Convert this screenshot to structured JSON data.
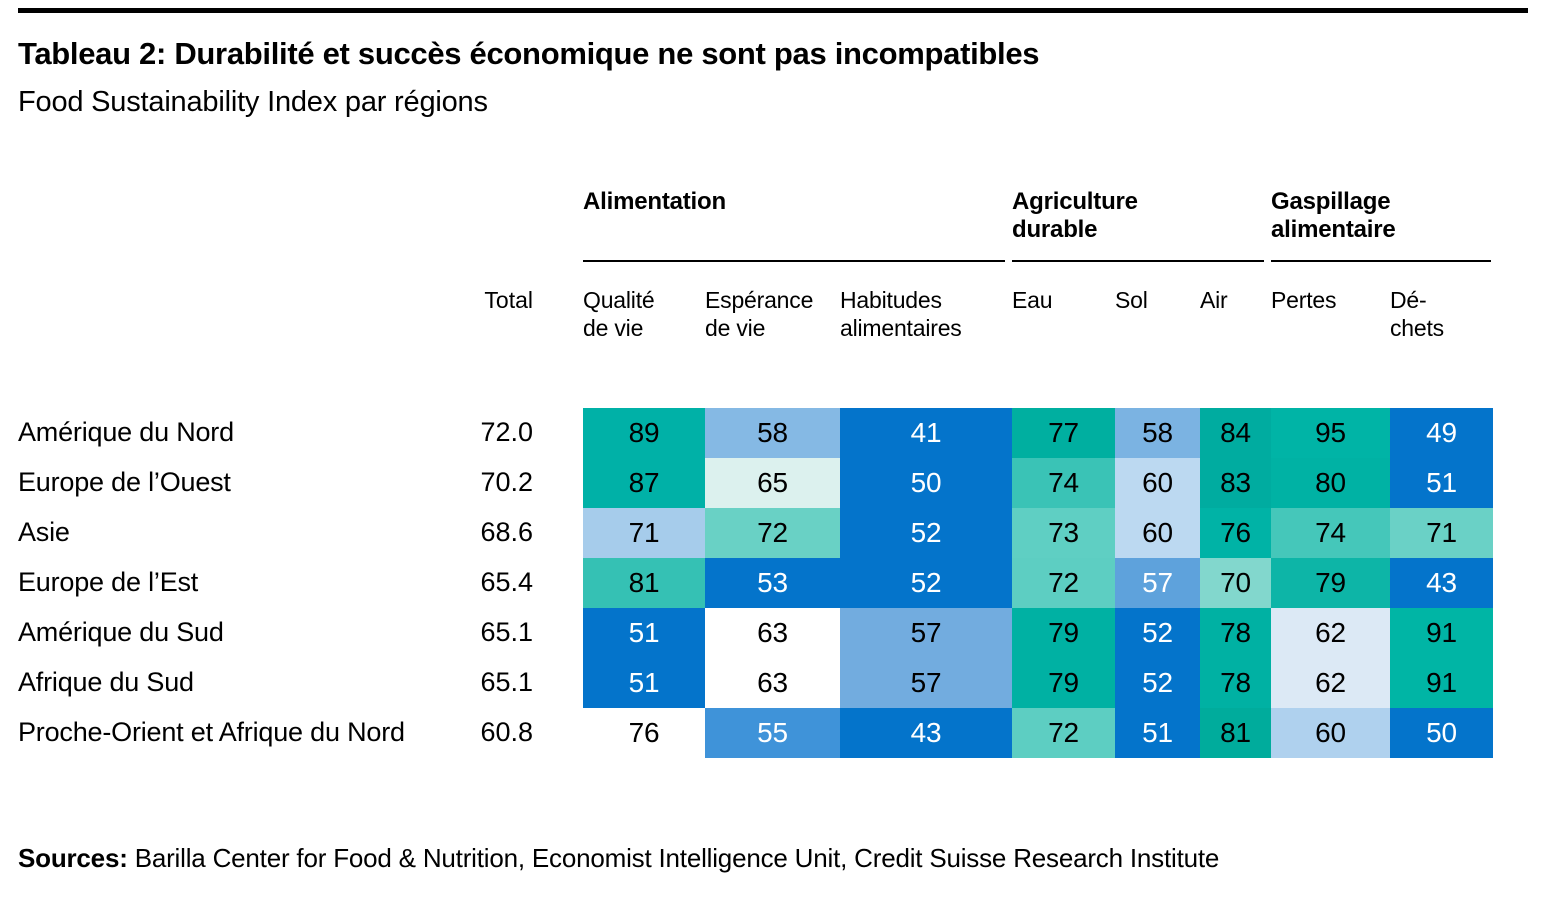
{
  "page": {
    "title": "Tableau 2: Durabilité et succès économique ne sont pas incompatibles",
    "subtitle": "Food Sustainability Index par régions",
    "sources_label": "Sources:",
    "sources_text": " Barilla Center for Food & Nutrition, Economist Intelligence Unit, Credit Suisse Research Institute"
  },
  "chart_data": {
    "type": "heatmap",
    "title": "Tableau 2: Durabilité et succès économique ne sont pas incompatibles",
    "subtitle": "Food Sustainability Index par régions",
    "total_column_label": "Total",
    "column_groups": [
      {
        "label": "Alimentation",
        "columns_span": [
          0,
          2
        ]
      },
      {
        "label": "Agriculture durable",
        "columns_span": [
          3,
          5
        ]
      },
      {
        "label": "Gaspillage alimentaire",
        "columns_span": [
          6,
          7
        ]
      }
    ],
    "columns": [
      "Qualité de vie",
      "Espérance de vie",
      "Habitudes alimentaires",
      "Eau",
      "Sol",
      "Air",
      "Pertes",
      "Dé-chets"
    ],
    "color_scale": {
      "description": "diverging, column-relative: blue = low, white = middle, teal = high",
      "low": "#0474cb",
      "mid": "#ffffff",
      "high": "#00b1a5"
    },
    "rows": [
      {
        "region": "Amérique du Nord",
        "total": "72.0",
        "cells": [
          {
            "v": 89,
            "bg": "#00b1a7",
            "fg": "#000000"
          },
          {
            "v": 58,
            "bg": "#85b9e4",
            "fg": "#000000"
          },
          {
            "v": 41,
            "bg": "#0474cb",
            "fg": "#ffffff"
          },
          {
            "v": 77,
            "bg": "#00afa0",
            "fg": "#000000"
          },
          {
            "v": 58,
            "bg": "#7bb3e2",
            "fg": "#000000"
          },
          {
            "v": 84,
            "bg": "#00aca0",
            "fg": "#000000"
          },
          {
            "v": 95,
            "bg": "#00b4a6",
            "fg": "#000000"
          },
          {
            "v": 49,
            "bg": "#0474cb",
            "fg": "#ffffff"
          }
        ]
      },
      {
        "region": "Europe de l’Ouest",
        "total": "70.2",
        "cells": [
          {
            "v": 87,
            "bg": "#00b1a7",
            "fg": "#000000"
          },
          {
            "v": 65,
            "bg": "#dcf1ee",
            "fg": "#000000"
          },
          {
            "v": 50,
            "bg": "#0474cb",
            "fg": "#ffffff"
          },
          {
            "v": 74,
            "bg": "#3ac3b6",
            "fg": "#000000"
          },
          {
            "v": 60,
            "bg": "#bcd9f1",
            "fg": "#000000"
          },
          {
            "v": 83,
            "bg": "#00aca0",
            "fg": "#000000"
          },
          {
            "v": 80,
            "bg": "#00b2a4",
            "fg": "#000000"
          },
          {
            "v": 51,
            "bg": "#0474cb",
            "fg": "#ffffff"
          }
        ]
      },
      {
        "region": "Asie",
        "total": "68.6",
        "cells": [
          {
            "v": 71,
            "bg": "#a6cceb",
            "fg": "#000000"
          },
          {
            "v": 72,
            "bg": "#69d1c5",
            "fg": "#000000"
          },
          {
            "v": 52,
            "bg": "#0474cb",
            "fg": "#ffffff"
          },
          {
            "v": 73,
            "bg": "#5fcfc3",
            "fg": "#000000"
          },
          {
            "v": 60,
            "bg": "#bcd9f1",
            "fg": "#000000"
          },
          {
            "v": 76,
            "bg": "#00b3a6",
            "fg": "#000000"
          },
          {
            "v": 74,
            "bg": "#45c7ba",
            "fg": "#000000"
          },
          {
            "v": 71,
            "bg": "#6ad1c6",
            "fg": "#000000"
          }
        ]
      },
      {
        "region": "Europe de l’Est",
        "total": "65.4",
        "cells": [
          {
            "v": 81,
            "bg": "#35c1b4",
            "fg": "#000000"
          },
          {
            "v": 53,
            "bg": "#0474cb",
            "fg": "#ffffff"
          },
          {
            "v": 52,
            "bg": "#0474cb",
            "fg": "#ffffff"
          },
          {
            "v": 72,
            "bg": "#5dcec2",
            "fg": "#000000"
          },
          {
            "v": 57,
            "bg": "#5ea2dc",
            "fg": "#ffffff"
          },
          {
            "v": 70,
            "bg": "#82d7cd",
            "fg": "#000000"
          },
          {
            "v": 79,
            "bg": "#0db5a7",
            "fg": "#000000"
          },
          {
            "v": 43,
            "bg": "#0474cb",
            "fg": "#ffffff"
          }
        ]
      },
      {
        "region": "Amérique du Sud",
        "total": "65.1",
        "cells": [
          {
            "v": 51,
            "bg": "#0474cb",
            "fg": "#ffffff"
          },
          {
            "v": 63,
            "bg": "#ffffff",
            "fg": "#000000"
          },
          {
            "v": 57,
            "bg": "#72acdf",
            "fg": "#000000"
          },
          {
            "v": 79,
            "bg": "#00b1a3",
            "fg": "#000000"
          },
          {
            "v": 52,
            "bg": "#0474cb",
            "fg": "#ffffff"
          },
          {
            "v": 78,
            "bg": "#00b1a3",
            "fg": "#000000"
          },
          {
            "v": 62,
            "bg": "#dce9f5",
            "fg": "#000000"
          },
          {
            "v": 91,
            "bg": "#00b5a5",
            "fg": "#000000"
          }
        ]
      },
      {
        "region": "Afrique du Sud",
        "total": "65.1",
        "cells": [
          {
            "v": 51,
            "bg": "#0474cb",
            "fg": "#ffffff"
          },
          {
            "v": 63,
            "bg": "#ffffff",
            "fg": "#000000"
          },
          {
            "v": 57,
            "bg": "#72acdf",
            "fg": "#000000"
          },
          {
            "v": 79,
            "bg": "#00b1a3",
            "fg": "#000000"
          },
          {
            "v": 52,
            "bg": "#0474cb",
            "fg": "#ffffff"
          },
          {
            "v": 78,
            "bg": "#00b1a3",
            "fg": "#000000"
          },
          {
            "v": 62,
            "bg": "#dce9f5",
            "fg": "#000000"
          },
          {
            "v": 91,
            "bg": "#00b5a5",
            "fg": "#000000"
          }
        ]
      },
      {
        "region": "Proche-Orient et Afrique du Nord",
        "total": "60.8",
        "cells": [
          {
            "v": 76,
            "bg": "#ffffff",
            "fg": "#000000"
          },
          {
            "v": 55,
            "bg": "#3f93d9",
            "fg": "#ffffff"
          },
          {
            "v": 43,
            "bg": "#0474cb",
            "fg": "#ffffff"
          },
          {
            "v": 72,
            "bg": "#5dcec2",
            "fg": "#000000"
          },
          {
            "v": 51,
            "bg": "#0474cb",
            "fg": "#ffffff"
          },
          {
            "v": 81,
            "bg": "#00ac9c",
            "fg": "#000000"
          },
          {
            "v": 60,
            "bg": "#afd1ee",
            "fg": "#000000"
          },
          {
            "v": 50,
            "bg": "#0474cb",
            "fg": "#ffffff"
          }
        ]
      }
    ]
  }
}
